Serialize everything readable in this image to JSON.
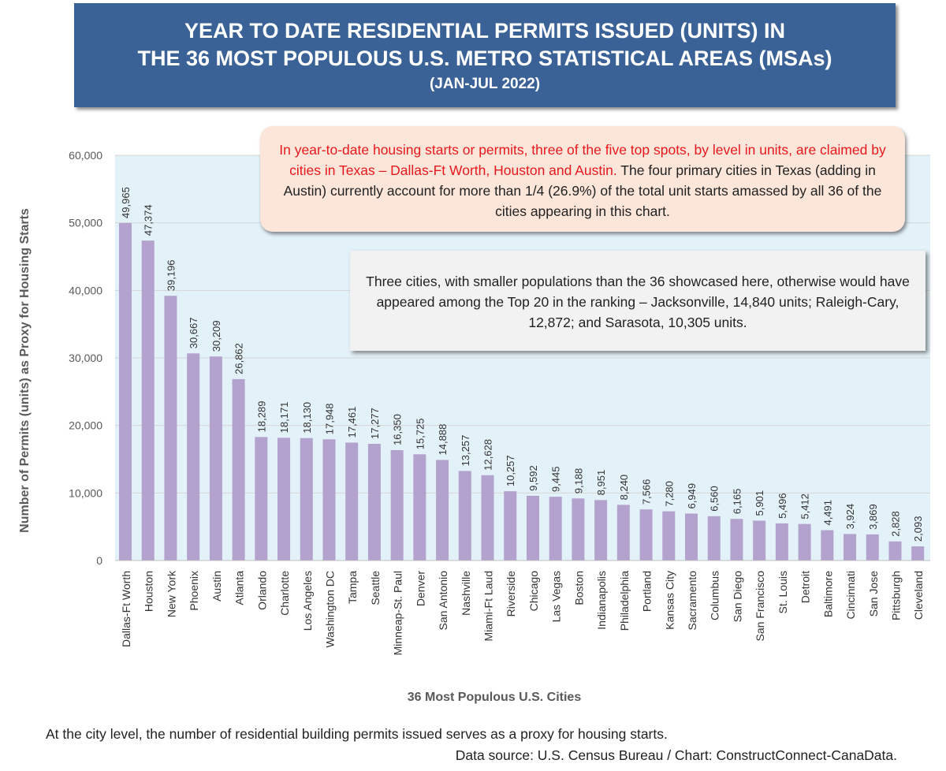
{
  "title": {
    "line1": "YEAR TO DATE RESIDENTIAL PERMITS ISSUED (UNITS) IN",
    "line2": "THE 36 MOST POPULOUS U.S. METRO STATISTICAL AREAS (MSAs)",
    "line3": "(JAN-JUL 2022)"
  },
  "callouts": {
    "primary_red": "In year-to-date housing starts or permits, three of the five top spots, by level in units, are claimed by cities in Texas – Dallas-Ft Worth, Houston and Austin.",
    "primary_rest": " The four primary cities in Texas (adding in Austin) currently account for more than  1/4 (26.9%) of the total unit starts amassed by all 36 of the cities appearing in this chart.",
    "secondary": "Three cities, with smaller populations than the 36 showcased here, otherwise would have appeared among the Top 20 in the ranking – Jacksonville, 14,840 units; Raleigh-Cary, 12,872; and Sarasota, 10,305 units."
  },
  "footer": {
    "note": "At the city level, the number of residential building permits issued serves as a proxy for housing starts.",
    "source": "Data source: U.S. Census Bureau / Chart: ConstructConnect-CanaData."
  },
  "colors": {
    "banner": "#3A6296",
    "bar": "#B3A2CD",
    "plot_bg": "#E3F1F8",
    "grid": "#D5D5D5",
    "callout_red": "#E8191E",
    "callout_primary_bg": "#FCE5D9",
    "callout_secondary_bg": "#F2F2F2"
  },
  "chart_data": {
    "type": "bar",
    "xlabel": "36 Most Populous U.S. Cities",
    "ylabel": "Number of Permits (units) as Proxy for Housing Starts",
    "ylim": [
      0,
      60000
    ],
    "yticks": [
      0,
      10000,
      20000,
      30000,
      40000,
      50000,
      60000
    ],
    "ytick_labels": [
      "0",
      "10,000",
      "20,000",
      "30,000",
      "40,000",
      "50,000",
      "60,000"
    ],
    "grid": true,
    "data_labels_rotated": true,
    "categories": [
      "Dallas-Ft Worth",
      "Houston",
      "New York",
      "Phoenix",
      "Austin",
      "Atlanta",
      "Orlando",
      "Charlotte",
      "Los Angeles",
      "Washington DC",
      "Tampa",
      "Seattle",
      "Minneap-St. Paul",
      "Denver",
      "San Antonio",
      "Nashville",
      "Miami-Ft Laud",
      "Riverside",
      "Chicago",
      "Las Vegas",
      "Boston",
      "Indianapolis",
      "Philadelphia",
      "Portland",
      "Kansas City",
      "Sacramento",
      "Columbus",
      "San Diego",
      "San Francisco",
      "St. Louis",
      "Detroit",
      "Baltimore",
      "Cincinnati",
      "San Jose",
      "Pittsburgh",
      "Cleveland"
    ],
    "values": [
      49965,
      47374,
      39196,
      30667,
      30209,
      26862,
      18289,
      18171,
      18130,
      17948,
      17461,
      17277,
      16350,
      15725,
      14888,
      13257,
      12628,
      10257,
      9592,
      9445,
      9188,
      8951,
      8240,
      7566,
      7280,
      6949,
      6560,
      6165,
      5901,
      5496,
      5412,
      4491,
      3924,
      3869,
      2828,
      2093
    ],
    "value_labels": [
      "49,965",
      "47,374",
      "39,196",
      "30,667",
      "30,209",
      "26,862",
      "18,289",
      "18,171",
      "18,130",
      "17,948",
      "17,461",
      "17,277",
      "16,350",
      "15,725",
      "14,888",
      "13,257",
      "12,628",
      "10,257",
      "9,592",
      "9,445",
      "9,188",
      "8,951",
      "8,240",
      "7,566",
      "7,280",
      "6,949",
      "6,560",
      "6,165",
      "5,901",
      "5,496",
      "5,412",
      "4,491",
      "3,924",
      "3,869",
      "2,828",
      "2,093"
    ]
  }
}
